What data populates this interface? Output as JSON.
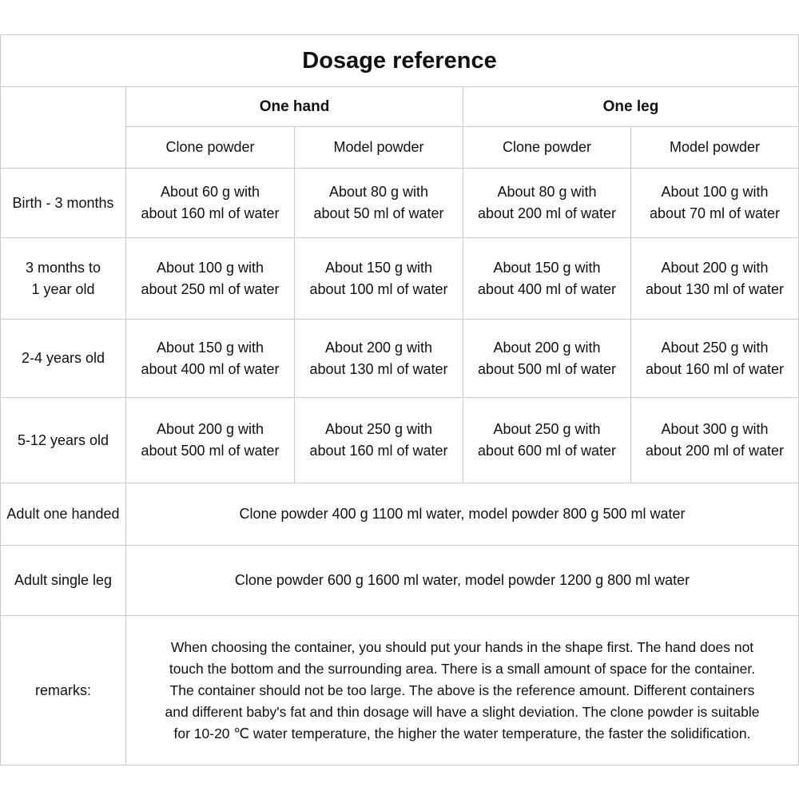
{
  "title": "Dosage reference",
  "header": {
    "groups": [
      "One hand",
      "One leg"
    ],
    "columns": [
      "Clone powder",
      "Model powder",
      "Clone powder",
      "Model powder"
    ]
  },
  "rows": [
    {
      "label": [
        "Birth - 3 months"
      ],
      "cells": [
        [
          "About 60 g with",
          "about 160 ml of water"
        ],
        [
          "About 80 g with",
          "about 50 ml of water"
        ],
        [
          "About 80 g with",
          "about 200 ml of water"
        ],
        [
          "About 100 g with",
          "about 70 ml of water"
        ]
      ]
    },
    {
      "label": [
        "3 months to",
        "1 year old"
      ],
      "cells": [
        [
          "About 100 g with",
          "about 250 ml of water"
        ],
        [
          "About 150 g with",
          "about 100 ml of water"
        ],
        [
          "About 150 g with",
          "about 400 ml of water"
        ],
        [
          "About 200 g with",
          "about 130 ml of water"
        ]
      ]
    },
    {
      "label": [
        "2-4 years old"
      ],
      "cells": [
        [
          "About 150 g with",
          "about 400 ml of water"
        ],
        [
          "About 200 g with",
          "about 130 ml of water"
        ],
        [
          "About 200 g with",
          "about 500 ml of water"
        ],
        [
          "About 250 g with",
          "about 160 ml of water"
        ]
      ]
    },
    {
      "label": [
        "5-12 years old"
      ],
      "cells": [
        [
          "About 200 g with",
          "about 500 ml of water"
        ],
        [
          "About 250 g with",
          "about 160 ml of water"
        ],
        [
          "About 250 g with",
          "about 600 ml of water"
        ],
        [
          "About 300 g with",
          "about 200 ml of water"
        ]
      ]
    }
  ],
  "merged_rows": [
    {
      "label": "Adult one handed",
      "text": "Clone powder 400 g 1100 ml water, model powder 800 g 500 ml water"
    },
    {
      "label": "Adult single leg",
      "text": "Clone powder 600 g 1600 ml water, model powder 1200 g 800 ml water"
    }
  ],
  "remarks": {
    "label": "remarks:",
    "lines": [
      "When choosing the container, you should put your hands in the shape first. The hand does not",
      "touch the bottom and the surrounding area. There is a small amount of space for the container.",
      "The container should not be too large. The above is the reference amount. Different containers",
      "and different baby's fat and thin dosage will have a slight deviation. The clone powder is suitable",
      "for 10-20 ℃ water temperature, the higher the water temperature, the faster the solidification."
    ]
  }
}
